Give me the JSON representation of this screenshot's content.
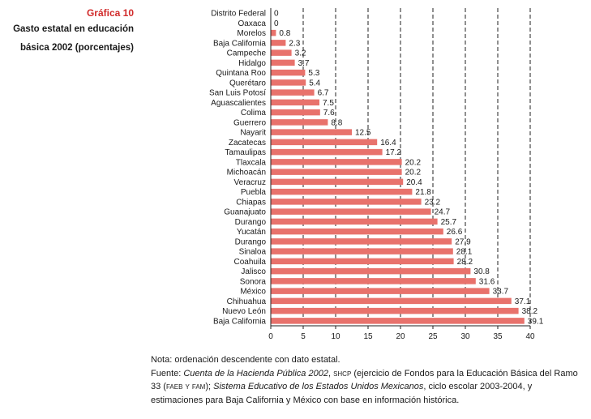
{
  "caption": {
    "number": "Gráfica 10",
    "title_line1": "Gasto estatal en educación",
    "title_line2": "básica 2002 (porcentajes)"
  },
  "chart_data": {
    "type": "bar",
    "orientation": "horizontal",
    "title": "Gasto estatal en educación básica 2002 (porcentajes)",
    "xlabel": "",
    "ylabel": "",
    "xlim": [
      0,
      40
    ],
    "xticks": [
      0,
      5,
      10,
      15,
      20,
      25,
      30,
      35,
      40
    ],
    "grid": "vertical dashed",
    "bar_color": "#e8726c",
    "categories": [
      "Distrito Federal",
      "Oaxaca",
      "Morelos",
      "Baja California",
      "Campeche",
      "Hidalgo",
      "Quintana Roo",
      "Querétaro",
      "San Luis Potosí",
      "Aguascalientes",
      "Colima",
      "Guerrero",
      "Nayarit",
      "Zacatecas",
      "Tamaulipas",
      "Tlaxcala",
      "Michoacán",
      "Veracruz",
      "Puebla",
      "Chiapas",
      "Guanajuato",
      "Durango",
      "Yucatán",
      "Durango",
      "Sinaloa",
      "Coahuila",
      "Jalisco",
      "Sonora",
      "México",
      "Chihuahua",
      "Nuevo León",
      "Baja California"
    ],
    "values": [
      0,
      0,
      0.8,
      2.3,
      3.2,
      3.7,
      5.3,
      5.4,
      6.7,
      7.5,
      7.6,
      8.8,
      12.5,
      16.4,
      17.2,
      20.2,
      20.2,
      20.4,
      21.8,
      23.2,
      24.7,
      25.7,
      26.6,
      27.9,
      28.1,
      28.2,
      30.8,
      31.6,
      33.7,
      37.1,
      38.2,
      39.1
    ]
  },
  "notes": {
    "nota": "Nota: ordenación descendente con dato estatal.",
    "fuente_label": "Fuente: ",
    "fuente_title1": "Cuenta de la Hacienda Pública 2002",
    "fuente_sep1": ", ",
    "fuente_shcp": "shcp",
    "fuente_text1": " (ejercicio de Fondos para la Educación Básica del Ramo 33 (",
    "fuente_faeb": "faeb y fam",
    "fuente_text2": "); ",
    "fuente_title2": "Sistema Educativo de los Estados Unidos Mexicanos",
    "fuente_text3": ", ciclo escolar 2003-2004, y estimaciones para Baja California y México con base en información histórica."
  }
}
